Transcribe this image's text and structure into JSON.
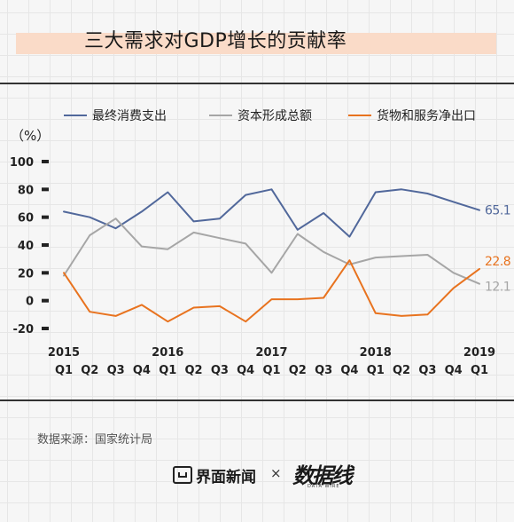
{
  "title": "三大需求对GDP增长的贡献率",
  "source": "数据来源：国家统计局",
  "footer": {
    "logo_left": "界面新闻",
    "separator": "×",
    "logo_right": "数据线",
    "logo_right_sub": "DATA WIRE"
  },
  "colors": {
    "consumption": "#51689b",
    "capital": "#a6a6a6",
    "net_export": "#e8731f",
    "axis": "#222222"
  },
  "chart_data": {
    "type": "line",
    "title": "三大需求对GDP增长的贡献率",
    "ylabel": "（%）",
    "ylim": [
      -20,
      100
    ],
    "yticks": [
      100,
      80,
      60,
      40,
      20,
      0,
      -20
    ],
    "legend_position": "top",
    "grid": false,
    "x": [
      "2015 Q1",
      "2015 Q2",
      "2015 Q3",
      "2015 Q4",
      "2016 Q1",
      "2016 Q2",
      "2016 Q3",
      "2016 Q4",
      "2017 Q1",
      "2017 Q2",
      "2017 Q3",
      "2017 Q4",
      "2018 Q1",
      "2018 Q2",
      "2018 Q3",
      "2018 Q4",
      "2019 Q1"
    ],
    "quarter_labels": [
      "Q1",
      "Q2",
      "Q3",
      "Q4",
      "Q1",
      "Q2",
      "Q3",
      "Q4",
      "Q1",
      "Q2",
      "Q3",
      "Q4",
      "Q1",
      "Q2",
      "Q3",
      "Q4",
      "Q1"
    ],
    "year_labels": [
      {
        "index": 0,
        "label": "2015"
      },
      {
        "index": 4,
        "label": "2016"
      },
      {
        "index": 8,
        "label": "2017"
      },
      {
        "index": 12,
        "label": "2018"
      },
      {
        "index": 16,
        "label": "2019"
      }
    ],
    "series": [
      {
        "key": "consumption",
        "name": "最终消费支出",
        "values": [
          64,
          60,
          52,
          64,
          78,
          57,
          59,
          76,
          80,
          51,
          63,
          46,
          78,
          80,
          77,
          71,
          65.1
        ],
        "end_label": "65.1"
      },
      {
        "key": "capital",
        "name": "资本形成总额",
        "values": [
          18,
          47,
          59,
          39,
          37,
          49,
          45,
          41,
          20,
          48,
          35,
          26,
          31,
          32,
          33,
          20,
          12.1
        ],
        "end_label": "12.1"
      },
      {
        "key": "net_export",
        "name": "货物和服务净出口",
        "values": [
          20,
          -8,
          -11,
          -3,
          -15,
          -5,
          -4,
          -15,
          1,
          1,
          2,
          29,
          -9,
          -11,
          -10,
          9,
          22.8
        ],
        "end_label": "22.8"
      }
    ]
  }
}
